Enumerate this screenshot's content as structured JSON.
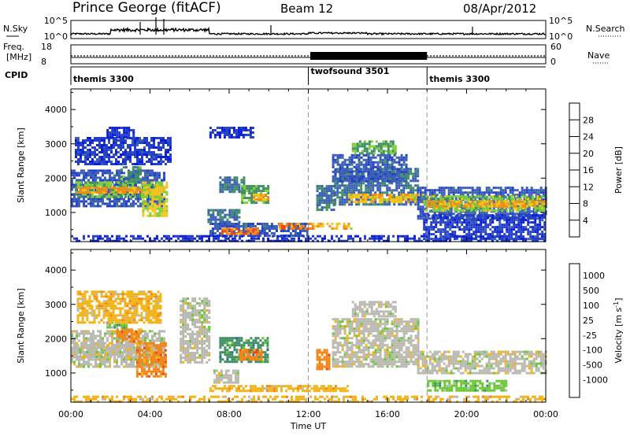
{
  "header": {
    "station": "Prince George (fitACF)",
    "beam": "Beam 12",
    "date": "08/Apr/2012"
  },
  "top_panels": {
    "nsky": {
      "label": "N.Sky",
      "right_label": "N.Search",
      "ticks": [
        "10^5",
        "10^0"
      ]
    },
    "freq": {
      "label_line1": "Freq.",
      "label_line2": "[MHz]",
      "left_ticks": [
        "18",
        "8"
      ],
      "right_ticks": [
        "60",
        "0"
      ],
      "right_label": "Nave"
    },
    "cpid": {
      "label": "CPID",
      "segments": [
        {
          "name": "themis 3300",
          "start_h": 0,
          "end_h": 12
        },
        {
          "name": "twofsound 3501",
          "start_h": 12,
          "end_h": 18
        },
        {
          "name": "themis 3300",
          "start_h": 18,
          "end_h": 24
        }
      ]
    }
  },
  "colors": {
    "power_scale": [
      "#0b1fd6",
      "#2540c8",
      "#3a5fb5",
      "#3f8f62",
      "#7fcf3a",
      "#f5c51a",
      "#f58a15",
      "#ef4b10",
      "#e01410"
    ],
    "velocity_scale": [
      "#1733c2",
      "#2f5fa8",
      "#3f8f62",
      "#66c833",
      "#b9b9b0",
      "#f3b316",
      "#f38416",
      "#ea4a10",
      "#dd1111"
    ]
  },
  "chart_data": [
    {
      "type": "heatmap",
      "title": "",
      "xlabel": "Time UT",
      "ylabel": "Slant Range [km]",
      "xlim": [
        0,
        24
      ],
      "ylim": [
        150,
        4600
      ],
      "x_tick_labels": [
        "00:00",
        "04:00",
        "08:00",
        "12:00",
        "16:00",
        "20:00",
        "00:00"
      ],
      "y_tick_labels": [
        "1000",
        "2000",
        "3000",
        "4000"
      ],
      "y_ticks": [
        1000,
        2000,
        3000,
        4000
      ],
      "colorbar": {
        "label": "Power [dB]",
        "tick_labels": [
          "4",
          "8",
          "12",
          "16",
          "20",
          "24",
          "28"
        ],
        "range": [
          0,
          32
        ]
      },
      "regions": [
        {
          "t0": 0.0,
          "t1": 4.7,
          "r0": 1150,
          "r1": 2250,
          "level": 8
        },
        {
          "t0": 0.2,
          "t1": 4.5,
          "r0": 1450,
          "r1": 1900,
          "level": 14
        },
        {
          "t0": 0.3,
          "t1": 4.3,
          "r0": 1550,
          "r1": 1750,
          "level": 22
        },
        {
          "t0": 2.5,
          "t1": 3.5,
          "r0": 1900,
          "r1": 2350,
          "level": 12
        },
        {
          "t0": 3.6,
          "t1": 4.8,
          "r0": 900,
          "r1": 1900,
          "level": 18
        },
        {
          "t0": 0.2,
          "t1": 5.0,
          "r0": 2400,
          "r1": 3200,
          "level": 5
        },
        {
          "t0": 1.8,
          "t1": 3.2,
          "r0": 3200,
          "r1": 3500,
          "level": 4
        },
        {
          "t0": 7.0,
          "t1": 9.2,
          "r0": 3200,
          "r1": 3500,
          "level": 4
        },
        {
          "t0": 7.5,
          "t1": 8.8,
          "r0": 1600,
          "r1": 2050,
          "level": 10
        },
        {
          "t0": 8.6,
          "t1": 10.0,
          "r0": 1300,
          "r1": 1800,
          "level": 14
        },
        {
          "t0": 9.2,
          "t1": 10.0,
          "r0": 1350,
          "r1": 1550,
          "level": 22
        },
        {
          "t0": 6.9,
          "t1": 8.5,
          "r0": 750,
          "r1": 1100,
          "level": 10
        },
        {
          "t0": 7.0,
          "t1": 12.0,
          "r0": 350,
          "r1": 700,
          "level": 8
        },
        {
          "t0": 7.6,
          "t1": 9.5,
          "r0": 350,
          "r1": 550,
          "level": 24
        },
        {
          "t0": 10.5,
          "t1": 12.2,
          "r0": 500,
          "r1": 700,
          "level": 24
        },
        {
          "t0": 12.2,
          "t1": 14.2,
          "r0": 550,
          "r1": 700,
          "level": 20
        },
        {
          "t0": 0.0,
          "t1": 24.0,
          "r0": 200,
          "r1": 340,
          "level": 4
        },
        {
          "t0": 12.4,
          "t1": 13.3,
          "r0": 1100,
          "r1": 1800,
          "level": 10
        },
        {
          "t0": 13.3,
          "t1": 17.5,
          "r0": 1200,
          "r1": 2300,
          "level": 10
        },
        {
          "t0": 14.0,
          "t1": 17.8,
          "r0": 1300,
          "r1": 1550,
          "level": 20
        },
        {
          "t0": 13.2,
          "t1": 17.0,
          "r0": 1900,
          "r1": 2700,
          "level": 8
        },
        {
          "t0": 14.2,
          "t1": 16.4,
          "r0": 2700,
          "r1": 3100,
          "level": 14
        },
        {
          "t0": 17.5,
          "t1": 24.0,
          "r0": 850,
          "r1": 1750,
          "level": 8
        },
        {
          "t0": 17.8,
          "t1": 24.0,
          "r0": 1050,
          "r1": 1500,
          "level": 16
        },
        {
          "t0": 18.0,
          "t1": 24.0,
          "r0": 1150,
          "r1": 1350,
          "level": 22
        },
        {
          "t0": 17.8,
          "t1": 24.0,
          "r0": 200,
          "r1": 950,
          "level": 5
        }
      ]
    },
    {
      "type": "heatmap",
      "title": "",
      "xlabel": "Time UT",
      "ylabel": "Slant Range [km]",
      "xlim": [
        0,
        24
      ],
      "ylim": [
        150,
        4600
      ],
      "x_tick_labels": [
        "00:00",
        "04:00",
        "08:00",
        "12:00",
        "16:00",
        "20:00",
        "00:00"
      ],
      "y_tick_labels": [
        "1000",
        "2000",
        "3000",
        "4000"
      ],
      "y_ticks": [
        1000,
        2000,
        3000,
        4000
      ],
      "colorbar": {
        "label": "Velocity [m s^-1]",
        "tick_labels": [
          "1000",
          "500",
          "100",
          "25",
          "-25",
          "-100",
          "-500",
          "-1000"
        ]
      },
      "regions": [
        {
          "t0": 0.0,
          "t1": 4.7,
          "r0": 1150,
          "r1": 2250,
          "level": 4
        },
        {
          "t0": 0.3,
          "t1": 4.5,
          "r0": 1450,
          "r1": 1850,
          "level": 4
        },
        {
          "t0": 3.3,
          "t1": 4.8,
          "r0": 900,
          "r1": 1900,
          "level": 6
        },
        {
          "t0": 2.3,
          "t1": 3.6,
          "r0": 1950,
          "r1": 2300,
          "level": 6
        },
        {
          "t0": 1.8,
          "t1": 2.8,
          "r0": 2300,
          "r1": 2500,
          "level": 3
        },
        {
          "t0": 0.3,
          "t1": 4.5,
          "r0": 2500,
          "r1": 3400,
          "level": 5
        },
        {
          "t0": 5.5,
          "t1": 7.0,
          "r0": 1300,
          "r1": 3200,
          "level": 4
        },
        {
          "t0": 7.5,
          "t1": 10.0,
          "r0": 1300,
          "r1": 2050,
          "level": 2
        },
        {
          "t0": 8.5,
          "t1": 9.6,
          "r0": 1400,
          "r1": 1700,
          "level": 6
        },
        {
          "t0": 7.2,
          "t1": 8.5,
          "r0": 750,
          "r1": 1100,
          "level": 4
        },
        {
          "t0": 7.0,
          "t1": 14.0,
          "r0": 450,
          "r1": 650,
          "level": 5
        },
        {
          "t0": 12.4,
          "t1": 13.0,
          "r0": 1100,
          "r1": 1700,
          "level": 6
        },
        {
          "t0": 13.2,
          "t1": 17.5,
          "r0": 1200,
          "r1": 2600,
          "level": 4
        },
        {
          "t0": 14.2,
          "t1": 16.4,
          "r0": 2650,
          "r1": 3100,
          "level": 4
        },
        {
          "t0": 17.5,
          "t1": 24.0,
          "r0": 1000,
          "r1": 1650,
          "level": 4
        },
        {
          "t0": 18.0,
          "t1": 22.0,
          "r0": 500,
          "r1": 800,
          "level": 3
        },
        {
          "t0": 0.0,
          "t1": 24.0,
          "r0": 200,
          "r1": 340,
          "level": 5
        }
      ]
    }
  ]
}
